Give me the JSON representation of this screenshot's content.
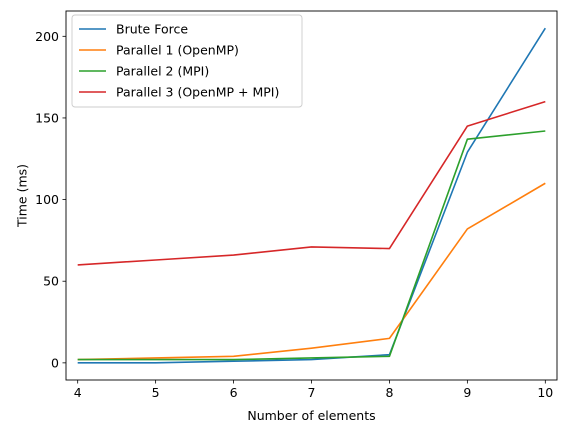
{
  "chart_data": {
    "type": "line",
    "title": "",
    "xlabel": "Number of elements",
    "ylabel": "Time (ms)",
    "x": [
      4,
      5,
      6,
      7,
      8,
      9,
      10
    ],
    "xlim": [
      3.85,
      10.15
    ],
    "ylim": [
      -10.5,
      215.5
    ],
    "xticks": [
      "4",
      "5",
      "6",
      "7",
      "8",
      "9",
      "10"
    ],
    "yticks": [
      "0",
      "50",
      "100",
      "150",
      "200"
    ],
    "grid": false,
    "legend_position": "top-left",
    "series": [
      {
        "name": "Brute Force",
        "color": "#1f77b4",
        "values": [
          0,
          0,
          1,
          2,
          5,
          129,
          205
        ]
      },
      {
        "name": "Parallel 1 (OpenMP)",
        "color": "#ff7f0e",
        "values": [
          2,
          3,
          4,
          9,
          15,
          82,
          110
        ]
      },
      {
        "name": "Parallel 2 (MPI)",
        "color": "#2ca02c",
        "values": [
          2,
          2,
          2,
          3,
          4,
          137,
          142
        ]
      },
      {
        "name": "Parallel 3 (OpenMP + MPI)",
        "color": "#d62728",
        "values": [
          60,
          63,
          66,
          71,
          70,
          145,
          160
        ]
      }
    ]
  }
}
